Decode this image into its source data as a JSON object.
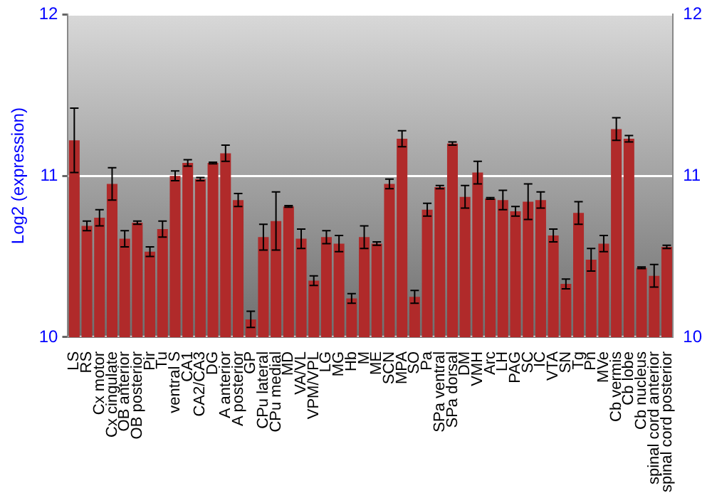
{
  "chart_data": {
    "type": "bar",
    "ylabel": "Log2 (expression)",
    "categories": [
      "LS",
      "RS",
      "Cx motor",
      "Cx cingulate",
      "OB anterior",
      "OB posterior",
      "Pir",
      "Tu",
      "ventral S",
      "CA1",
      "CA2/CA3",
      "DG",
      "A anterior",
      "A posterior",
      "GP",
      "CPu lateral",
      "CPu medial",
      "MD",
      "VA/VL",
      "VPM/VPL",
      "LG",
      "MG",
      "Hb",
      "M",
      "ME",
      "SCN",
      "MPA",
      "SO",
      "Pa",
      "SPa ventral",
      "SPa dorsal",
      "DM",
      "VMH",
      "Arc",
      "LH",
      "PAG",
      "SC",
      "IC",
      "VTA",
      "SN",
      "Tg",
      "Pn",
      "MVe",
      "Cb vermis",
      "Cb lobe",
      "Cb nucleus",
      "spinal cord anterior",
      "spinal cord posterior"
    ],
    "values": [
      11.22,
      10.69,
      10.74,
      10.95,
      10.61,
      10.71,
      10.53,
      10.67,
      11.0,
      11.08,
      10.98,
      11.08,
      11.14,
      10.85,
      10.11,
      10.62,
      10.72,
      10.81,
      10.61,
      10.35,
      10.62,
      10.58,
      10.24,
      10.62,
      10.58,
      10.95,
      11.23,
      10.25,
      10.79,
      10.93,
      11.2,
      10.87,
      11.02,
      10.86,
      10.85,
      10.78,
      10.84,
      10.85,
      10.63,
      10.33,
      10.77,
      10.48,
      10.58,
      11.29,
      11.23,
      10.43,
      10.38,
      10.56
    ],
    "errors": [
      0.2,
      0.03,
      0.05,
      0.1,
      0.05,
      0.01,
      0.03,
      0.05,
      0.03,
      0.02,
      0.01,
      0.005,
      0.05,
      0.04,
      0.05,
      0.08,
      0.18,
      0.005,
      0.06,
      0.03,
      0.04,
      0.05,
      0.03,
      0.07,
      0.01,
      0.03,
      0.05,
      0.04,
      0.04,
      0.01,
      0.01,
      0.07,
      0.07,
      0.005,
      0.06,
      0.03,
      0.11,
      0.05,
      0.04,
      0.03,
      0.07,
      0.07,
      0.05,
      0.07,
      0.02,
      0.005,
      0.07,
      0.01
    ],
    "color": "#b02a2a",
    "ylim": [
      10,
      12
    ],
    "yticks": [
      10,
      11,
      12
    ],
    "y2lim": [
      10,
      12
    ],
    "y2ticks": [
      10,
      11,
      12
    ],
    "grid": "y",
    "legend": false
  }
}
